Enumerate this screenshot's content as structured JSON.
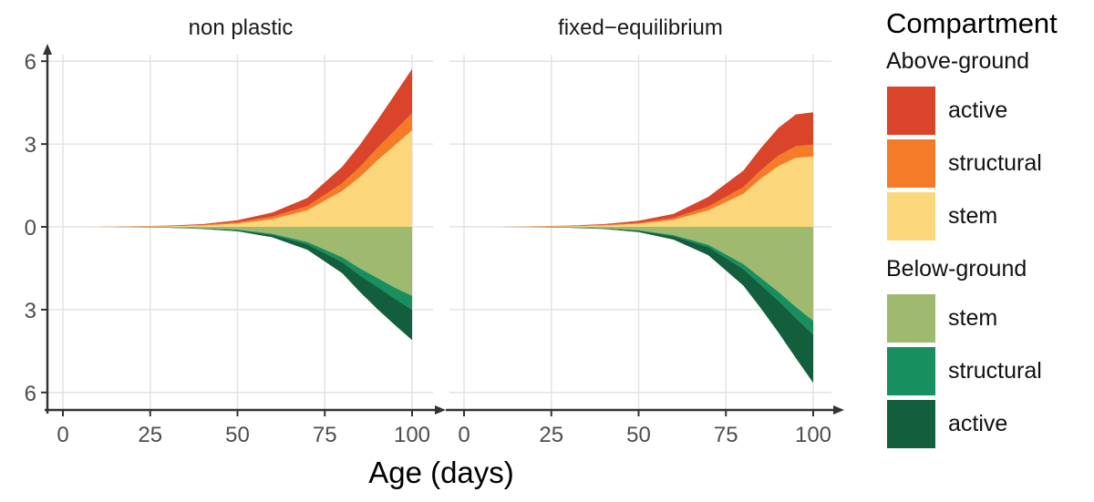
{
  "chart_data": {
    "type": "area",
    "xlabel": "Age (days)",
    "ylabel": "",
    "xlim": [
      0,
      100
    ],
    "ylim": [
      -6,
      6
    ],
    "x_ticks": [
      0,
      25,
      50,
      75,
      100
    ],
    "y_ticks": [
      6,
      3,
      0,
      -3,
      -6
    ],
    "y_tick_labels": [
      "6",
      "3",
      "0",
      "3",
      "6"
    ],
    "grid": true,
    "legend_position": "right",
    "legend": {
      "title": "Compartment",
      "groups": [
        {
          "name": "Above-ground",
          "entries": [
            {
              "label": "active",
              "color": "#D9442A"
            },
            {
              "label": "structural",
              "color": "#F47B27"
            },
            {
              "label": "stem",
              "color": "#FBD67A"
            }
          ]
        },
        {
          "name": "Below-ground",
          "entries": [
            {
              "label": "stem",
              "color": "#9FBA6E"
            },
            {
              "label": "structural",
              "color": "#178F5F"
            },
            {
              "label": "active",
              "color": "#135E3D"
            }
          ]
        }
      ]
    },
    "x": [
      0,
      10,
      20,
      30,
      40,
      50,
      60,
      70,
      80,
      85,
      90,
      95,
      100
    ],
    "panels": [
      {
        "title": "non plastic",
        "series": [
          {
            "name": "Above-ground stem",
            "values": [
              0,
              0,
              0.01,
              0.02,
              0.05,
              0.12,
              0.28,
              0.6,
              1.3,
              1.8,
              2.4,
              2.95,
              3.5
            ]
          },
          {
            "name": "Above-ground structural",
            "values": [
              0,
              0,
              0.005,
              0.01,
              0.02,
              0.05,
              0.09,
              0.15,
              0.28,
              0.36,
              0.45,
              0.53,
              0.62
            ]
          },
          {
            "name": "Above-ground active",
            "values": [
              0,
              0,
              0.005,
              0.015,
              0.03,
              0.07,
              0.15,
              0.3,
              0.6,
              0.8,
              1.0,
              1.3,
              1.6
            ]
          },
          {
            "name": "Below-ground stem",
            "values": [
              0,
              0,
              -0.01,
              -0.02,
              -0.05,
              -0.1,
              -0.25,
              -0.55,
              -1.1,
              -1.5,
              -1.85,
              -2.2,
              -2.5
            ]
          },
          {
            "name": "Below-ground structural",
            "values": [
              0,
              0,
              -0.002,
              -0.005,
              -0.01,
              -0.02,
              -0.04,
              -0.08,
              -0.18,
              -0.25,
              -0.32,
              -0.4,
              -0.5
            ]
          },
          {
            "name": "Below-ground active",
            "values": [
              0,
              0,
              -0.003,
              -0.01,
              -0.02,
              -0.04,
              -0.09,
              -0.2,
              -0.4,
              -0.6,
              -0.8,
              -0.95,
              -1.1
            ]
          }
        ]
      },
      {
        "title": "fixed−equilibrium",
        "series": [
          {
            "name": "Above-ground stem",
            "values": [
              0,
              0,
              0.01,
              0.02,
              0.05,
              0.11,
              0.25,
              0.6,
              1.2,
              1.75,
              2.2,
              2.5,
              2.55
            ]
          },
          {
            "name": "Above-ground structural",
            "values": [
              0,
              0,
              0.005,
              0.01,
              0.02,
              0.04,
              0.07,
              0.14,
              0.24,
              0.3,
              0.38,
              0.42,
              0.43
            ]
          },
          {
            "name": "Above-ground active",
            "values": [
              0,
              0,
              0.005,
              0.015,
              0.03,
              0.07,
              0.15,
              0.35,
              0.6,
              0.8,
              1.0,
              1.15,
              1.17
            ]
          },
          {
            "name": "Below-ground stem",
            "values": [
              0,
              0,
              -0.01,
              -0.02,
              -0.05,
              -0.12,
              -0.3,
              -0.65,
              -1.35,
              -1.85,
              -2.35,
              -2.9,
              -3.4
            ]
          },
          {
            "name": "Below-ground structural",
            "values": [
              0,
              0,
              -0.002,
              -0.005,
              -0.01,
              -0.02,
              -0.04,
              -0.08,
              -0.18,
              -0.25,
              -0.32,
              -0.4,
              -0.5
            ]
          },
          {
            "name": "Below-ground active",
            "values": [
              0,
              0,
              -0.003,
              -0.01,
              -0.02,
              -0.05,
              -0.12,
              -0.3,
              -0.6,
              -0.85,
              -1.15,
              -1.45,
              -1.75
            ]
          }
        ]
      }
    ]
  }
}
